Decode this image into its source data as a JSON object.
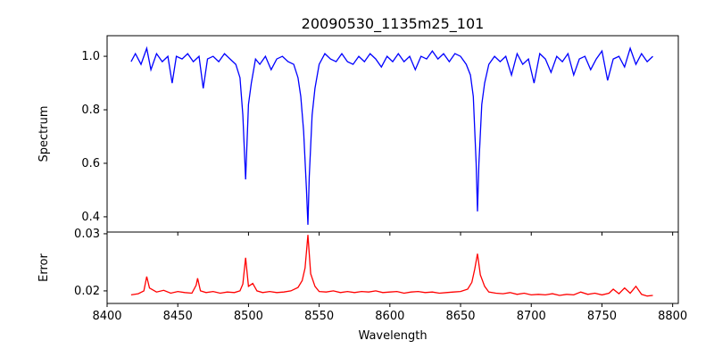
{
  "chart_data": [
    {
      "type": "line",
      "title": "20090530_1135m25_101",
      "xlabel": "",
      "ylabel": "Spectrum",
      "xlim": [
        8400,
        8804
      ],
      "ylim": [
        0.343,
        1.077
      ],
      "xticks": [
        8400,
        8450,
        8500,
        8550,
        8600,
        8650,
        8700,
        8750,
        8800
      ],
      "yticks": [
        0.4,
        0.6,
        0.8,
        1.0
      ],
      "ytick_labels": [
        "0.4",
        "0.6",
        "0.8",
        "1.0"
      ],
      "color": "#0000ff",
      "x": [
        8417,
        8420,
        8424,
        8428,
        8431,
        8435,
        8439,
        8443,
        8446,
        8449,
        8453,
        8457,
        8461,
        8465,
        8468,
        8471,
        8475,
        8479,
        8483,
        8487,
        8491,
        8494,
        8496,
        8498,
        8500,
        8502,
        8505,
        8508,
        8512,
        8516,
        8520,
        8524,
        8528,
        8532,
        8535,
        8537,
        8539,
        8541,
        8542,
        8543,
        8545,
        8547,
        8550,
        8554,
        8558,
        8562,
        8566,
        8570,
        8574,
        8578,
        8582,
        8586,
        8590,
        8594,
        8598,
        8602,
        8606,
        8610,
        8614,
        8618,
        8622,
        8626,
        8630,
        8634,
        8638,
        8642,
        8646,
        8650,
        8654,
        8657,
        8659,
        8661,
        8662,
        8663,
        8665,
        8667,
        8670,
        8674,
        8678,
        8682,
        8686,
        8690,
        8694,
        8698,
        8702,
        8706,
        8710,
        8714,
        8718,
        8722,
        8726,
        8730,
        8734,
        8738,
        8742,
        8746,
        8750,
        8754,
        8758,
        8762,
        8766,
        8770,
        8774,
        8778,
        8782,
        8786
      ],
      "y": [
        0.98,
        1.01,
        0.97,
        1.03,
        0.95,
        1.01,
        0.98,
        1.0,
        0.9,
        1.0,
        0.99,
        1.01,
        0.98,
        1.0,
        0.88,
        0.99,
        1.0,
        0.98,
        1.01,
        0.99,
        0.97,
        0.92,
        0.78,
        0.54,
        0.82,
        0.9,
        0.99,
        0.97,
        1.0,
        0.95,
        0.99,
        1.0,
        0.98,
        0.97,
        0.92,
        0.85,
        0.72,
        0.5,
        0.37,
        0.55,
        0.78,
        0.88,
        0.97,
        1.01,
        0.99,
        0.98,
        1.01,
        0.98,
        0.97,
        1.0,
        0.98,
        1.01,
        0.99,
        0.96,
        1.0,
        0.98,
        1.01,
        0.98,
        1.0,
        0.95,
        1.0,
        0.99,
        1.02,
        0.99,
        1.01,
        0.98,
        1.01,
        1.0,
        0.97,
        0.93,
        0.85,
        0.6,
        0.42,
        0.6,
        0.82,
        0.9,
        0.97,
        1.0,
        0.98,
        1.0,
        0.93,
        1.01,
        0.97,
        0.99,
        0.9,
        1.01,
        0.99,
        0.94,
        1.0,
        0.98,
        1.01,
        0.93,
        0.99,
        1.0,
        0.95,
        0.99,
        1.02,
        0.91,
        0.99,
        1.0,
        0.96,
        1.03,
        0.97,
        1.01,
        0.98,
        1.0
      ]
    },
    {
      "type": "line",
      "xlabel": "Wavelength",
      "ylabel": "Error",
      "xlim": [
        8400,
        8804
      ],
      "ylim": [
        0.0178,
        0.0303
      ],
      "xticks": [
        8400,
        8450,
        8500,
        8550,
        8600,
        8650,
        8700,
        8750,
        8800
      ],
      "xtick_labels": [
        "8400",
        "8450",
        "8500",
        "8550",
        "8600",
        "8650",
        "8700",
        "8750",
        "8800"
      ],
      "yticks": [
        0.02,
        0.03
      ],
      "ytick_labels": [
        "0.02",
        "0.03"
      ],
      "color": "#ff0000",
      "x": [
        8417,
        8422,
        8426,
        8428,
        8430,
        8435,
        8440,
        8445,
        8450,
        8455,
        8460,
        8463,
        8464,
        8466,
        8470,
        8475,
        8480,
        8485,
        8490,
        8494,
        8496,
        8498,
        8500,
        8503,
        8506,
        8510,
        8515,
        8520,
        8525,
        8530,
        8535,
        8538,
        8540,
        8542,
        8544,
        8547,
        8550,
        8555,
        8560,
        8565,
        8570,
        8575,
        8580,
        8585,
        8590,
        8595,
        8600,
        8605,
        8610,
        8615,
        8620,
        8625,
        8630,
        8635,
        8640,
        8645,
        8650,
        8655,
        8658,
        8660,
        8662,
        8664,
        8667,
        8670,
        8675,
        8680,
        8685,
        8690,
        8695,
        8700,
        8705,
        8710,
        8715,
        8720,
        8725,
        8730,
        8735,
        8740,
        8745,
        8750,
        8755,
        8758,
        8762,
        8766,
        8770,
        8774,
        8778,
        8782,
        8786
      ],
      "y": [
        0.0193,
        0.0195,
        0.02,
        0.0225,
        0.0205,
        0.0198,
        0.0201,
        0.0196,
        0.0199,
        0.0197,
        0.0196,
        0.021,
        0.0222,
        0.02,
        0.0197,
        0.0199,
        0.0196,
        0.0198,
        0.0197,
        0.02,
        0.0212,
        0.0258,
        0.0208,
        0.0213,
        0.02,
        0.0197,
        0.0199,
        0.0197,
        0.0198,
        0.02,
        0.0206,
        0.0218,
        0.024,
        0.0298,
        0.023,
        0.0208,
        0.0199,
        0.0198,
        0.02,
        0.0197,
        0.0199,
        0.0197,
        0.0199,
        0.0198,
        0.02,
        0.0197,
        0.0198,
        0.0199,
        0.0196,
        0.0198,
        0.0199,
        0.0197,
        0.0198,
        0.0196,
        0.0197,
        0.0198,
        0.0199,
        0.0203,
        0.0215,
        0.0238,
        0.0265,
        0.0228,
        0.0208,
        0.0198,
        0.0196,
        0.0195,
        0.0197,
        0.0194,
        0.0196,
        0.0193,
        0.0194,
        0.0193,
        0.0195,
        0.0192,
        0.0194,
        0.0193,
        0.0198,
        0.0194,
        0.0196,
        0.0193,
        0.0196,
        0.0203,
        0.0195,
        0.0205,
        0.0196,
        0.0208,
        0.0194,
        0.0191,
        0.0192
      ]
    }
  ]
}
